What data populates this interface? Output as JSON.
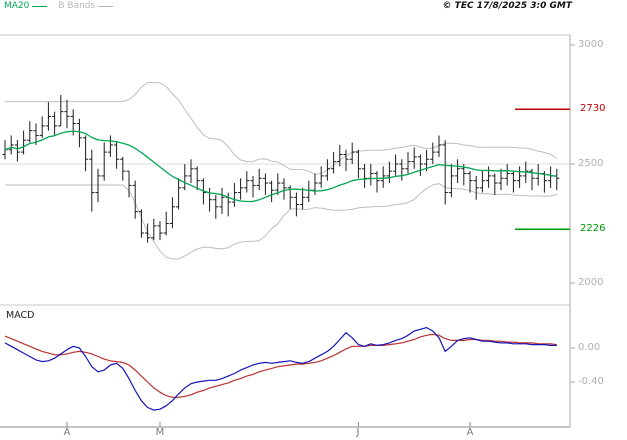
{
  "header": {
    "copyright": "© TEC 17/8/2025 3:0 GMT"
  },
  "macd_label": "MACD",
  "colors": {
    "ma20": "#00a651",
    "bbands": "#bdbdbd",
    "bars": "#1c1c1c",
    "resistance_level": "#c00000",
    "support_level": "#009900",
    "macd_line": "#1414b8",
    "macd_signal": "#b83232",
    "axis": "#aaaaaa"
  },
  "chart_data": [
    {
      "type": "candlestick",
      "panel": "price",
      "title": "Daily price bars with MA20 and Bollinger Bands",
      "legend": [
        {
          "label": "MA20",
          "color": "#00a651"
        },
        {
          "label": "B Bands",
          "color": "#b8b8b8"
        }
      ],
      "ylim": [
        1950,
        3050
      ],
      "y_ticks": [
        {
          "label": "3000",
          "value": 3000
        },
        {
          "label": "2500",
          "value": 2500
        },
        {
          "label": "2000",
          "value": 2000
        }
      ],
      "levels": [
        {
          "label": "2730",
          "value": 2730,
          "color": "#c00000"
        },
        {
          "label": "2226",
          "value": 2226,
          "color": "#009900"
        }
      ],
      "month_labels": [
        {
          "label": "A",
          "bar_index": 10
        },
        {
          "label": "M",
          "bar_index": 25
        },
        {
          "label": "J",
          "bar_index": 57
        },
        {
          "label": "A",
          "bar_index": 75
        }
      ],
      "overlays": {
        "ma20": "SMA20 of closes",
        "bollinger": "SMA20 ± 2 stddev"
      },
      "bars_hlc": [
        [
          2600,
          2520,
          2560
        ],
        [
          2620,
          2540,
          2580
        ],
        [
          2600,
          2510,
          2550
        ],
        [
          2640,
          2540,
          2600
        ],
        [
          2680,
          2590,
          2640
        ],
        [
          2670,
          2580,
          2620
        ],
        [
          2700,
          2610,
          2660
        ],
        [
          2760,
          2640,
          2700
        ],
        [
          2720,
          2620,
          2660
        ],
        [
          2790,
          2660,
          2720
        ],
        [
          2770,
          2650,
          2700
        ],
        [
          2730,
          2620,
          2670
        ],
        [
          2690,
          2570,
          2610
        ],
        [
          2620,
          2470,
          2520
        ],
        [
          2560,
          2300,
          2380
        ],
        [
          2480,
          2340,
          2450
        ],
        [
          2590,
          2430,
          2550
        ],
        [
          2620,
          2530,
          2580
        ],
        [
          2590,
          2480,
          2520
        ],
        [
          2530,
          2430,
          2470
        ],
        [
          2470,
          2360,
          2410
        ],
        [
          2430,
          2270,
          2300
        ],
        [
          2310,
          2190,
          2210
        ],
        [
          2250,
          2170,
          2190
        ],
        [
          2270,
          2180,
          2240
        ],
        [
          2260,
          2180,
          2210
        ],
        [
          2300,
          2200,
          2250
        ],
        [
          2360,
          2230,
          2320
        ],
        [
          2440,
          2310,
          2400
        ],
        [
          2500,
          2390,
          2450
        ],
        [
          2520,
          2420,
          2480
        ],
        [
          2490,
          2390,
          2430
        ],
        [
          2440,
          2330,
          2380
        ],
        [
          2400,
          2300,
          2350
        ],
        [
          2370,
          2270,
          2320
        ],
        [
          2400,
          2290,
          2360
        ],
        [
          2380,
          2280,
          2340
        ],
        [
          2420,
          2320,
          2380
        ],
        [
          2440,
          2350,
          2400
        ],
        [
          2470,
          2380,
          2430
        ],
        [
          2450,
          2360,
          2410
        ],
        [
          2480,
          2390,
          2440
        ],
        [
          2460,
          2370,
          2420
        ],
        [
          2430,
          2340,
          2390
        ],
        [
          2460,
          2370,
          2420
        ],
        [
          2440,
          2350,
          2400
        ],
        [
          2410,
          2310,
          2360
        ],
        [
          2380,
          2280,
          2330
        ],
        [
          2400,
          2310,
          2360
        ],
        [
          2430,
          2340,
          2390
        ],
        [
          2460,
          2370,
          2420
        ],
        [
          2490,
          2400,
          2450
        ],
        [
          2520,
          2430,
          2480
        ],
        [
          2550,
          2460,
          2510
        ],
        [
          2580,
          2490,
          2540
        ],
        [
          2560,
          2470,
          2520
        ],
        [
          2590,
          2500,
          2550
        ],
        [
          2560,
          2440,
          2480
        ],
        [
          2500,
          2400,
          2440
        ],
        [
          2500,
          2410,
          2460
        ],
        [
          2470,
          2380,
          2430
        ],
        [
          2490,
          2400,
          2450
        ],
        [
          2510,
          2420,
          2470
        ],
        [
          2540,
          2450,
          2500
        ],
        [
          2520,
          2430,
          2480
        ],
        [
          2550,
          2460,
          2510
        ],
        [
          2570,
          2480,
          2530
        ],
        [
          2540,
          2450,
          2500
        ],
        [
          2560,
          2470,
          2520
        ],
        [
          2590,
          2500,
          2550
        ],
        [
          2620,
          2530,
          2580
        ],
        [
          2600,
          2330,
          2380
        ],
        [
          2500,
          2360,
          2450
        ],
        [
          2520,
          2420,
          2480
        ],
        [
          2500,
          2410,
          2460
        ],
        [
          2470,
          2380,
          2430
        ],
        [
          2450,
          2350,
          2400
        ],
        [
          2470,
          2380,
          2430
        ],
        [
          2490,
          2400,
          2450
        ],
        [
          2460,
          2370,
          2420
        ],
        [
          2480,
          2390,
          2440
        ],
        [
          2500,
          2410,
          2460
        ],
        [
          2470,
          2380,
          2430
        ],
        [
          2490,
          2400,
          2450
        ],
        [
          2510,
          2420,
          2470
        ],
        [
          2480,
          2390,
          2440
        ],
        [
          2500,
          2410,
          2460
        ],
        [
          2470,
          2380,
          2430
        ],
        [
          2490,
          2400,
          2450
        ],
        [
          2480,
          2390,
          2440
        ]
      ]
    },
    {
      "type": "line",
      "panel": "MACD",
      "title": "MACD",
      "ylim": [
        -0.9,
        0.45
      ],
      "y_ticks": [
        {
          "label": "0.00",
          "value": 0
        },
        {
          "label": "-0.40",
          "value": -0.4
        }
      ],
      "series": [
        {
          "name": "macd",
          "color": "#1414b8",
          "values": [
            0.06,
            0.02,
            -0.02,
            -0.06,
            -0.1,
            -0.14,
            -0.16,
            -0.15,
            -0.12,
            -0.07,
            -0.02,
            0.02,
            0.0,
            -0.1,
            -0.22,
            -0.28,
            -0.26,
            -0.2,
            -0.18,
            -0.24,
            -0.36,
            -0.5,
            -0.62,
            -0.7,
            -0.73,
            -0.72,
            -0.68,
            -0.62,
            -0.54,
            -0.47,
            -0.42,
            -0.4,
            -0.39,
            -0.38,
            -0.38,
            -0.36,
            -0.33,
            -0.3,
            -0.26,
            -0.23,
            -0.2,
            -0.18,
            -0.17,
            -0.18,
            -0.17,
            -0.16,
            -0.15,
            -0.17,
            -0.18,
            -0.16,
            -0.12,
            -0.08,
            -0.04,
            0.02,
            0.1,
            0.18,
            0.12,
            0.04,
            0.02,
            0.05,
            0.03,
            0.04,
            0.06,
            0.09,
            0.11,
            0.15,
            0.2,
            0.22,
            0.24,
            0.2,
            0.12,
            -0.04,
            0.02,
            0.09,
            0.11,
            0.12,
            0.1,
            0.08,
            0.08,
            0.07,
            0.06,
            0.06,
            0.05,
            0.05,
            0.05,
            0.04,
            0.04,
            0.04,
            0.03,
            0.03
          ]
        },
        {
          "name": "signal",
          "color": "#b83232",
          "values": [
            0.14,
            0.11,
            0.08,
            0.05,
            0.02,
            -0.01,
            -0.04,
            -0.06,
            -0.08,
            -0.08,
            -0.07,
            -0.05,
            -0.04,
            -0.05,
            -0.07,
            -0.1,
            -0.13,
            -0.15,
            -0.16,
            -0.17,
            -0.2,
            -0.26,
            -0.33,
            -0.4,
            -0.47,
            -0.52,
            -0.56,
            -0.58,
            -0.58,
            -0.57,
            -0.55,
            -0.52,
            -0.5,
            -0.47,
            -0.45,
            -0.43,
            -0.41,
            -0.38,
            -0.36,
            -0.33,
            -0.31,
            -0.28,
            -0.26,
            -0.24,
            -0.22,
            -0.21,
            -0.2,
            -0.19,
            -0.19,
            -0.18,
            -0.17,
            -0.15,
            -0.12,
            -0.09,
            -0.05,
            -0.01,
            0.02,
            0.02,
            0.02,
            0.03,
            0.03,
            0.03,
            0.04,
            0.05,
            0.06,
            0.08,
            0.1,
            0.13,
            0.15,
            0.16,
            0.15,
            0.11,
            0.09,
            0.09,
            0.09,
            0.1,
            0.1,
            0.09,
            0.09,
            0.08,
            0.08,
            0.07,
            0.07,
            0.06,
            0.06,
            0.06,
            0.05,
            0.05,
            0.05,
            0.04
          ]
        }
      ]
    }
  ]
}
